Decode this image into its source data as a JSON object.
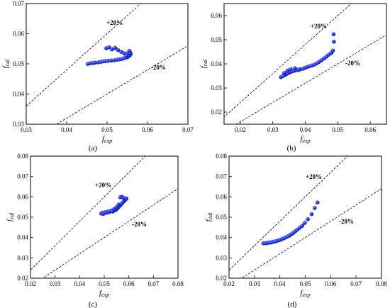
{
  "chart_data": [
    {
      "type": "scatter",
      "panel": "(a)",
      "xlabel": "f",
      "xlabel_sub": "exp",
      "ylabel": "f",
      "ylabel_sub": "cal",
      "xlim": [
        0.03,
        0.07
      ],
      "ylim": [
        0.03,
        0.07
      ],
      "xticks": [
        "0.03",
        "0.04",
        "0.05",
        "0.06",
        "0.07"
      ],
      "yticks": [
        "0.03",
        "0.04",
        "0.05",
        "0.06",
        "0.07"
      ],
      "band_upper_label": "+20%",
      "band_lower_label": "-20%",
      "marker_color": "#1f2fe6",
      "x": [
        0.0452,
        0.0458,
        0.0465,
        0.047,
        0.0478,
        0.0485,
        0.049,
        0.0495,
        0.0502,
        0.051,
        0.0518,
        0.0525,
        0.053,
        0.0535,
        0.054,
        0.0545,
        0.055,
        0.0553,
        0.0556,
        0.0558,
        0.0498,
        0.0505,
        0.0512,
        0.052,
        0.0527,
        0.0535,
        0.0542,
        0.0548,
        0.0552,
        0.0556,
        0.0558,
        0.0555,
        0.0548
      ],
      "y": [
        0.05,
        0.0502,
        0.0503,
        0.0504,
        0.0505,
        0.0507,
        0.0508,
        0.0509,
        0.051,
        0.0511,
        0.0512,
        0.0514,
        0.0515,
        0.0516,
        0.0518,
        0.052,
        0.0522,
        0.0525,
        0.0528,
        0.0532,
        0.0552,
        0.0555,
        0.0548,
        0.0553,
        0.0546,
        0.054,
        0.0535,
        0.053,
        0.0536,
        0.054,
        0.0535,
        0.0543,
        0.0527
      ]
    },
    {
      "type": "scatter",
      "panel": "(b)",
      "xlabel": "f",
      "xlabel_sub": "exp",
      "ylabel": "f",
      "ylabel_sub": "cal",
      "xlim": [
        0.015,
        0.065
      ],
      "ylim": [
        0.015,
        0.065
      ],
      "xticks": [
        "0.02",
        "0.03",
        "0.04",
        "0.05",
        "0.06"
      ],
      "xtick_values": [
        0.02,
        0.03,
        0.04,
        0.05,
        0.06
      ],
      "yticks": [
        "0.02",
        "0.03",
        "0.04",
        "0.05",
        "0.06"
      ],
      "ytick_values": [
        0.02,
        0.03,
        0.04,
        0.05,
        0.06
      ],
      "band_upper_label": "+20%",
      "band_lower_label": "-20%",
      "marker_color": "#1f2fe6",
      "x": [
        0.0325,
        0.0332,
        0.0338,
        0.0342,
        0.0347,
        0.0352,
        0.0357,
        0.0362,
        0.0367,
        0.0372,
        0.0378,
        0.0385,
        0.0392,
        0.0398,
        0.0405,
        0.0412,
        0.042,
        0.0428,
        0.0435,
        0.0442,
        0.045,
        0.0458,
        0.0465,
        0.0472,
        0.048,
        0.0485,
        0.0488,
        0.0487,
        0.0335,
        0.0345,
        0.0355,
        0.0368,
        0.038
      ],
      "y": [
        0.0345,
        0.035,
        0.0355,
        0.0358,
        0.0362,
        0.0365,
        0.0368,
        0.037,
        0.0372,
        0.0374,
        0.0376,
        0.0378,
        0.038,
        0.0383,
        0.0387,
        0.039,
        0.0393,
        0.0397,
        0.0402,
        0.0408,
        0.0415,
        0.0423,
        0.043,
        0.0438,
        0.0445,
        0.0455,
        0.0492,
        0.0523,
        0.0362,
        0.0372,
        0.0378,
        0.0382,
        0.0375
      ]
    },
    {
      "type": "scatter",
      "panel": "(c)",
      "xlabel": "f",
      "xlabel_sub": "exp",
      "ylabel": "f",
      "ylabel_sub": "cal",
      "xlim": [
        0.02,
        0.08
      ],
      "ylim": [
        0.02,
        0.08
      ],
      "xticks": [
        "0.02",
        "0.03",
        "0.04",
        "0.05",
        "0.06",
        "0.07",
        "0.08"
      ],
      "yticks": [
        "0.02",
        "0.03",
        "0.04",
        "0.05",
        "0.06",
        "0.07",
        "0.08"
      ],
      "band_upper_label": "+20%",
      "band_lower_label": "-20%",
      "marker_color": "#1f2fe6",
      "x": [
        0.0488,
        0.0492,
        0.0496,
        0.05,
        0.0505,
        0.051,
        0.0515,
        0.052,
        0.0525,
        0.053,
        0.0535,
        0.054,
        0.0545,
        0.055,
        0.0555,
        0.056,
        0.0565,
        0.057,
        0.0575,
        0.058,
        0.0585,
        0.0588,
        0.059,
        0.0572,
        0.0578,
        0.0565,
        0.0558,
        0.0548,
        0.0538
      ],
      "y": [
        0.0518,
        0.0522,
        0.0516,
        0.052,
        0.0525,
        0.0522,
        0.0528,
        0.0525,
        0.053,
        0.0532,
        0.0528,
        0.0536,
        0.0534,
        0.054,
        0.0545,
        0.0552,
        0.0558,
        0.0565,
        0.0572,
        0.0578,
        0.0585,
        0.0588,
        0.0592,
        0.06,
        0.0595,
        0.0598,
        0.0562,
        0.0548,
        0.0538
      ]
    },
    {
      "type": "scatter",
      "panel": "(d)",
      "xlabel": "f",
      "xlabel_sub": "exp",
      "ylabel": "f",
      "ylabel_sub": "cal",
      "xlim": [
        0.02,
        0.08
      ],
      "ylim": [
        0.02,
        0.08
      ],
      "xticks": [
        "0.02",
        "0.03",
        "0.04",
        "0.05",
        "0.06",
        "0.07",
        "0.08"
      ],
      "yticks": [
        "0.02",
        "0.03",
        "0.04",
        "0.05",
        "0.06",
        "0.07",
        "0.08"
      ],
      "band_upper_label": "+20%",
      "band_lower_label": "-20%",
      "marker_color": "#1f2fe6",
      "x": [
        0.0335,
        0.0345,
        0.0352,
        0.0358,
        0.0365,
        0.0372,
        0.0378,
        0.0385,
        0.0392,
        0.04,
        0.0408,
        0.0415,
        0.0422,
        0.043,
        0.0438,
        0.0445,
        0.0452,
        0.046,
        0.0468,
        0.0478,
        0.0488,
        0.0498,
        0.051,
        0.0525,
        0.0537,
        0.0548
      ],
      "y": [
        0.0372,
        0.0372,
        0.0374,
        0.0375,
        0.0376,
        0.0378,
        0.038,
        0.0382,
        0.0385,
        0.0388,
        0.0392,
        0.0396,
        0.04,
        0.0405,
        0.041,
        0.0416,
        0.0422,
        0.043,
        0.0438,
        0.0448,
        0.0458,
        0.0472,
        0.049,
        0.0515,
        0.0545,
        0.0572
      ]
    }
  ]
}
